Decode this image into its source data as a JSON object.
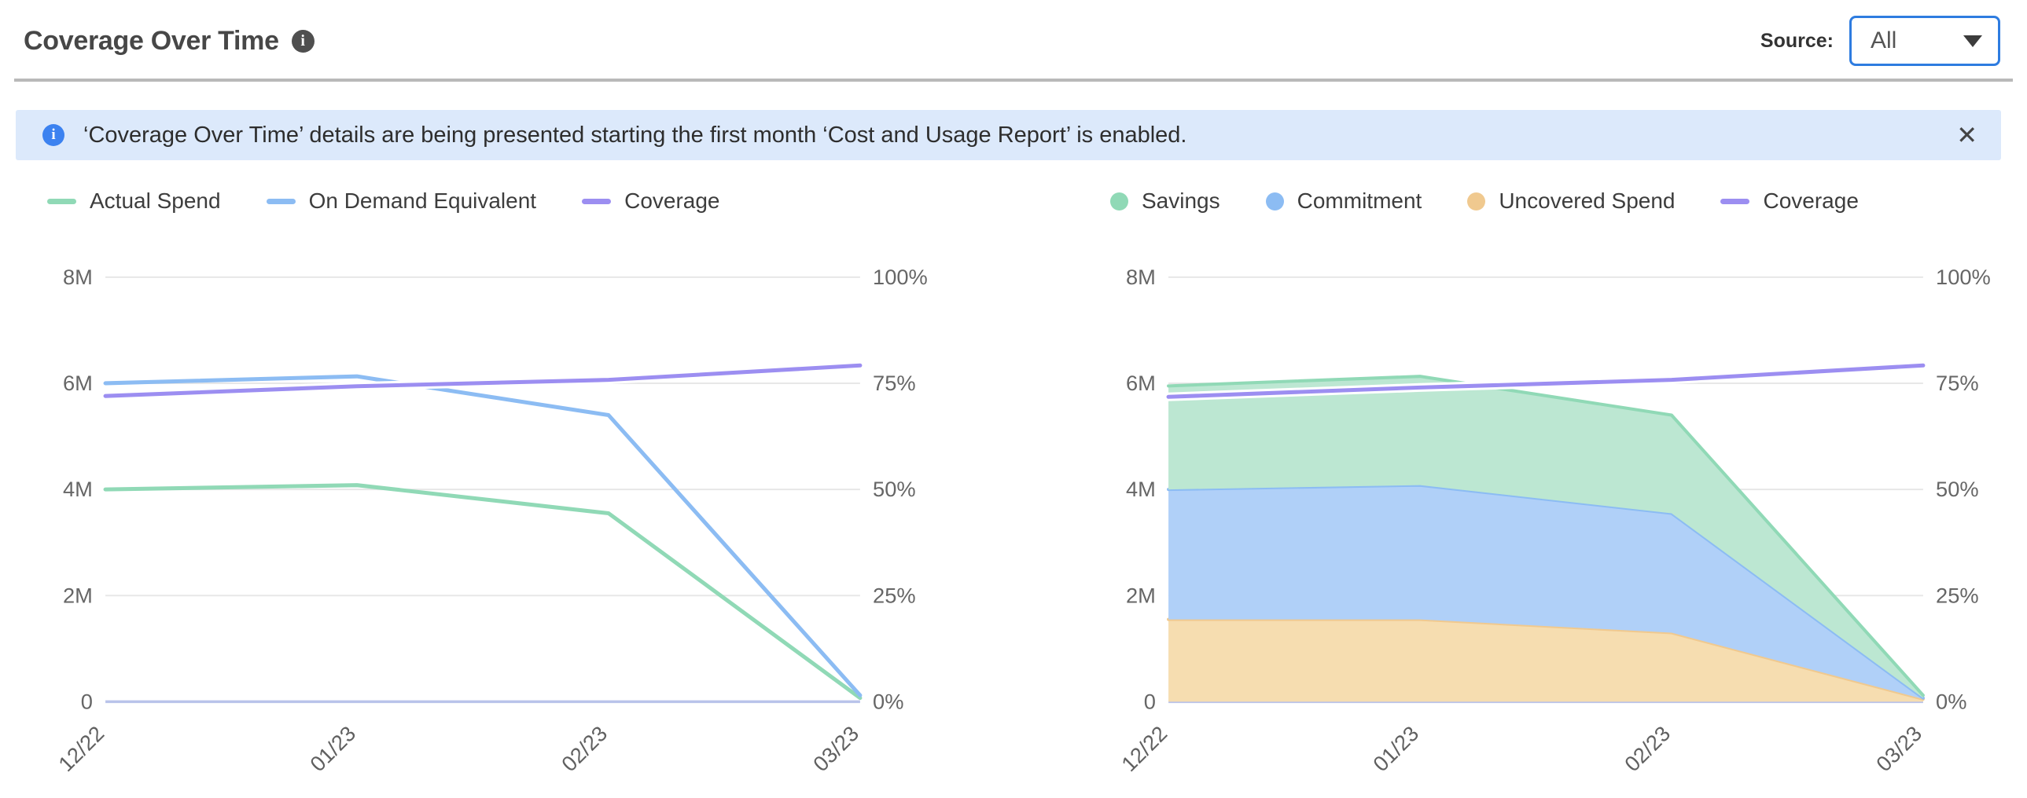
{
  "header": {
    "title": "Coverage Over Time",
    "source_label": "Source:",
    "source_value": "All"
  },
  "icons": {
    "info_glyph": "i",
    "close_glyph": "✕"
  },
  "banner": {
    "text": "‘Coverage Over Time’ details are being presented starting the first month ‘Cost and Usage Report’ is enabled."
  },
  "colors": {
    "accent_blue": "#2e7ce0",
    "banner_bg": "#dce9fb",
    "banner_icon": "#3c82f0",
    "grid": "#e7e7e7",
    "baseline": "#b9c3ea",
    "green": "#90d9b6",
    "blue": "#8cbcf3",
    "orange": "#f0c98f",
    "purple": "#9c8ef1"
  },
  "chart_data": [
    {
      "type": "line",
      "title": "",
      "categories": [
        "12/22",
        "01/23",
        "02/23",
        "03/23"
      ],
      "grid": true,
      "legend_position": "top-left",
      "left_axis": {
        "ticks": [
          "0",
          "2M",
          "4M",
          "6M",
          "8M"
        ],
        "min": 0,
        "max": 8,
        "unit": "M (millions $)"
      },
      "right_axis": {
        "ticks": [
          "0%",
          "25%",
          "50%",
          "75%",
          "100%"
        ],
        "min": 0,
        "max": 100,
        "unit": "%"
      },
      "series": [
        {
          "name": "Actual Spend",
          "marker": "line",
          "axis": "left",
          "color": "#90d9b6",
          "values": [
            4.0,
            4.08,
            3.55,
            0.07
          ]
        },
        {
          "name": "On Demand Equivalent",
          "marker": "line",
          "axis": "left",
          "color": "#8cbcf3",
          "values": [
            6.0,
            6.13,
            5.4,
            0.12
          ]
        },
        {
          "name": "Coverage",
          "marker": "line",
          "axis": "right",
          "color": "#9c8ef1",
          "values": [
            72,
            74.3,
            75.8,
            79.2
          ]
        }
      ]
    },
    {
      "type": "area",
      "stacked": true,
      "title": "",
      "categories": [
        "12/22",
        "01/23",
        "02/23",
        "03/23"
      ],
      "grid": true,
      "legend_position": "top-left",
      "stack_order": [
        "Uncovered Spend",
        "Commitment",
        "Savings"
      ],
      "left_axis": {
        "ticks": [
          "0",
          "2M",
          "4M",
          "6M",
          "8M"
        ],
        "min": 0,
        "max": 8,
        "unit": "M (millions $)"
      },
      "right_axis": {
        "ticks": [
          "0%",
          "25%",
          "50%",
          "75%",
          "100%"
        ],
        "min": 0,
        "max": 100,
        "unit": "%"
      },
      "series": [
        {
          "name": "Savings",
          "marker": "circle",
          "axis": "left",
          "color": "#90d9b6",
          "fill": "#bce7d2",
          "values": [
            1.95,
            2.05,
            1.85,
            0.05
          ]
        },
        {
          "name": "Commitment",
          "marker": "circle",
          "axis": "left",
          "color": "#8cbcf3",
          "fill": "#b0d0f8",
          "values": [
            2.45,
            2.53,
            2.25,
            0.02
          ]
        },
        {
          "name": "Uncovered Spend",
          "marker": "circle",
          "axis": "left",
          "color": "#f0c98f",
          "fill": "#f6ddb0",
          "values": [
            1.55,
            1.55,
            1.3,
            0.05
          ]
        },
        {
          "name": "Coverage",
          "marker": "line",
          "axis": "right",
          "color": "#9c8ef1",
          "values": [
            71.8,
            74.0,
            75.8,
            79.2
          ]
        }
      ]
    }
  ]
}
